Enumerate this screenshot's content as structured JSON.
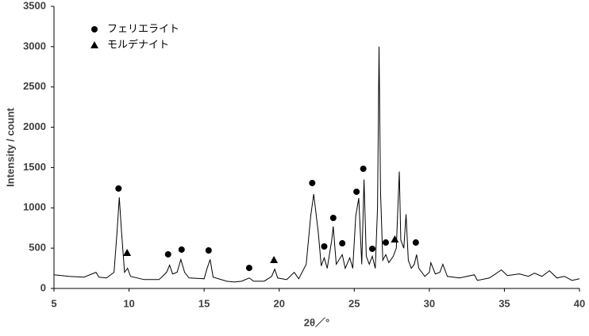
{
  "chart_data": {
    "type": "line",
    "x_label": "2θ／°",
    "y_label": "Intensity / count",
    "xlim": [
      5,
      40
    ],
    "xticks": [
      5,
      10,
      15,
      20,
      25,
      30,
      35,
      40
    ],
    "ylim": [
      0,
      3500
    ],
    "yticks": [
      0,
      500,
      1000,
      1500,
      2000,
      2500,
      3000,
      3500
    ],
    "grid": false,
    "legend": "top-left",
    "series": [
      {
        "type": "line",
        "color": "#000000",
        "x": [
          5,
          6,
          7,
          7.8,
          8,
          8.5,
          9,
          9.2,
          9.35,
          9.5,
          9.7,
          9.9,
          10.1,
          11,
          12,
          12.5,
          12.7,
          12.9,
          13.2,
          13.45,
          13.7,
          14,
          15,
          15.2,
          15.4,
          15.6,
          16.5,
          17,
          17.5,
          18,
          18.3,
          19,
          19.5,
          19.7,
          19.9,
          20.5,
          21,
          21.3,
          21.8,
          22.1,
          22.3,
          22.6,
          22.8,
          23,
          23.2,
          23.5,
          23.6,
          23.8,
          24.2,
          24.4,
          24.7,
          24.9,
          25.1,
          25.3,
          25.5,
          25.65,
          25.8,
          26,
          26.2,
          26.4,
          26.55,
          26.65,
          26.75,
          26.9,
          27.1,
          27.3,
          27.6,
          27.8,
          28,
          28.1,
          28.3,
          28.45,
          28.6,
          28.8,
          29,
          29.15,
          29.3,
          29.7,
          30,
          30.1,
          30.4,
          30.7,
          30.9,
          31.2,
          32,
          33,
          33.2,
          34,
          34.8,
          35.2,
          36,
          36.6,
          37,
          37.5,
          38,
          38.5,
          39,
          39.5,
          40
        ],
        "values": [
          170,
          150,
          140,
          200,
          140,
          130,
          200,
          700,
          1130,
          700,
          200,
          250,
          150,
          110,
          110,
          200,
          290,
          180,
          200,
          360,
          200,
          130,
          120,
          250,
          360,
          140,
          90,
          80,
          90,
          130,
          90,
          90,
          150,
          240,
          130,
          110,
          200,
          120,
          300,
          900,
          1170,
          700,
          280,
          380,
          250,
          600,
          770,
          300,
          420,
          250,
          380,
          250,
          900,
          1120,
          300,
          1350,
          400,
          300,
          400,
          250,
          1000,
          3000,
          1200,
          350,
          420,
          320,
          400,
          500,
          1450,
          600,
          500,
          920,
          350,
          250,
          300,
          420,
          250,
          150,
          200,
          320,
          180,
          200,
          300,
          150,
          130,
          170,
          100,
          130,
          230,
          160,
          180,
          150,
          190,
          150,
          220,
          130,
          150,
          100,
          120
        ]
      },
      {
        "type": "scatter",
        "name": "フェリエライト",
        "marker": "circle",
        "color": "#000000",
        "x": [
          9.3,
          12.6,
          13.5,
          15.3,
          18.0,
          22.2,
          23.0,
          23.6,
          24.2,
          25.15,
          25.6,
          26.2,
          27.1,
          29.1
        ],
        "values": [
          1240,
          423,
          482,
          472,
          255,
          1308,
          521,
          875,
          560,
          1200,
          1485,
          492,
          570,
          570
        ]
      },
      {
        "type": "scatter",
        "name": "モルデナイト",
        "marker": "triangle",
        "color": "#000000",
        "x": [
          9.87,
          19.65,
          27.7
        ],
        "values": [
          442,
          354,
          610
        ]
      }
    ]
  }
}
